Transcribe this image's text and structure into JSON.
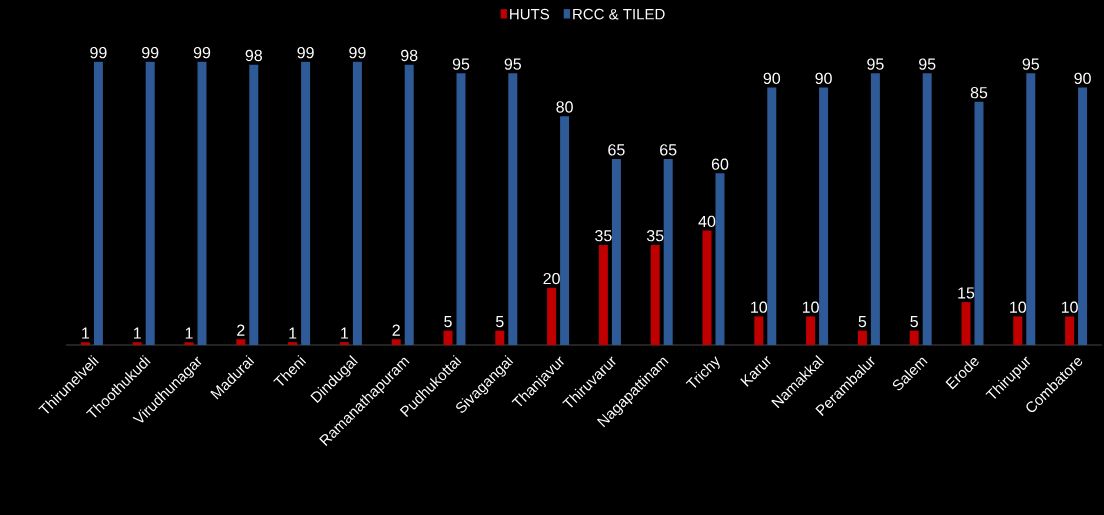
{
  "chart_data": {
    "type": "bar",
    "categories": [
      "Thirunelveli",
      "Thoothukudi",
      "Virudhunagar",
      "Madurai",
      "Theni",
      "Dindugal",
      "Ramanathapuram",
      "Pudhukottai",
      "Sivagangai",
      "Thanjavur",
      "Thiruvarur",
      "Nagapattinam",
      "Trichy",
      "Karur",
      "Namakkal",
      "Perambalur",
      "Salem",
      "Erode",
      "Thirupur",
      "Combatore"
    ],
    "series": [
      {
        "name": "HUTS",
        "color": "#c00000",
        "values": [
          1,
          1,
          1,
          2,
          1,
          1,
          2,
          5,
          5,
          20,
          35,
          35,
          40,
          10,
          10,
          5,
          5,
          15,
          10,
          10
        ]
      },
      {
        "name": "RCC & TILED",
        "color": "#2e5a97",
        "values": [
          99,
          99,
          99,
          98,
          99,
          99,
          98,
          95,
          95,
          80,
          65,
          65,
          60,
          90,
          90,
          95,
          95,
          85,
          95,
          90
        ]
      }
    ],
    "data_labels": true,
    "legend": "top"
  }
}
